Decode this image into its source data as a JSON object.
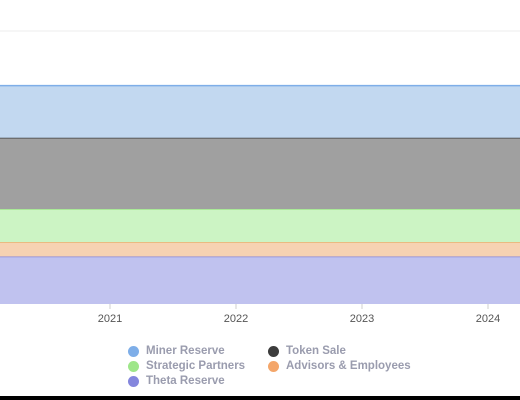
{
  "chart_data": {
    "type": "area",
    "stacked": true,
    "x": [
      "2021",
      "2022",
      "2023",
      "2024"
    ],
    "ylim": [
      0,
      1.15
    ],
    "grid": false,
    "legend_position": "bottom",
    "series": [
      {
        "name": "Miner Reserve",
        "color": "#c2d8f0",
        "legend_color": "#7eaee8",
        "values": [
          0.22,
          0.22,
          0.22,
          0.22
        ]
      },
      {
        "name": "Token Sale",
        "color": "#a0a0a0",
        "legend_color": "#3c3c3c",
        "values": [
          0.3,
          0.3,
          0.3,
          0.3
        ]
      },
      {
        "name": "Strategic Partners",
        "color": "#ccf4c4",
        "legend_color": "#9ee689",
        "values": [
          0.14,
          0.14,
          0.14,
          0.14
        ]
      },
      {
        "name": "Advisors & Employees",
        "color": "#f6d2b2",
        "legend_color": "#f4a66a",
        "values": [
          0.06,
          0.06,
          0.06,
          0.06
        ]
      },
      {
        "name": "Theta Reserve",
        "color": "#c0c2ef",
        "legend_color": "#8486dd",
        "values": [
          0.2,
          0.2,
          0.2,
          0.2
        ]
      }
    ]
  }
}
